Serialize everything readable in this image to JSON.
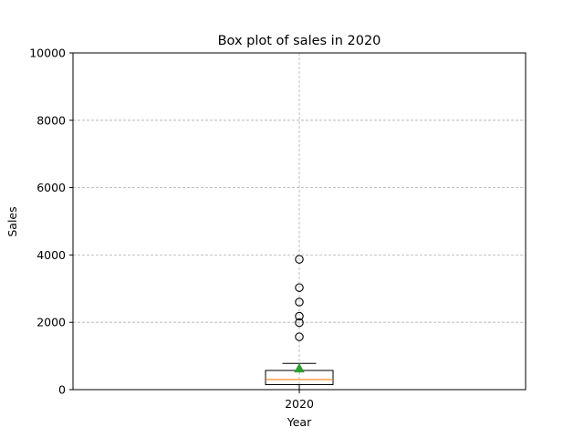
{
  "chart_data": {
    "type": "box",
    "title": "Box plot of sales in 2020",
    "xlabel": "Year",
    "ylabel": "Sales",
    "categories": [
      "2020"
    ],
    "ylim": [
      0,
      10000
    ],
    "yticks": [
      0,
      2000,
      4000,
      6000,
      8000,
      10000
    ],
    "grid": true,
    "box": {
      "whisker_low": 0,
      "q1": 150,
      "median": 300,
      "q3": 570,
      "whisker_high": 780,
      "mean": 630,
      "outliers": [
        1570,
        1990,
        2180,
        2600,
        3030,
        3870
      ]
    },
    "colors": {
      "box": "#000000",
      "median": "#ff7f0e",
      "mean": "#2ca02c",
      "grid": "#b0b0b0",
      "outlier_edge": "#000000"
    }
  }
}
